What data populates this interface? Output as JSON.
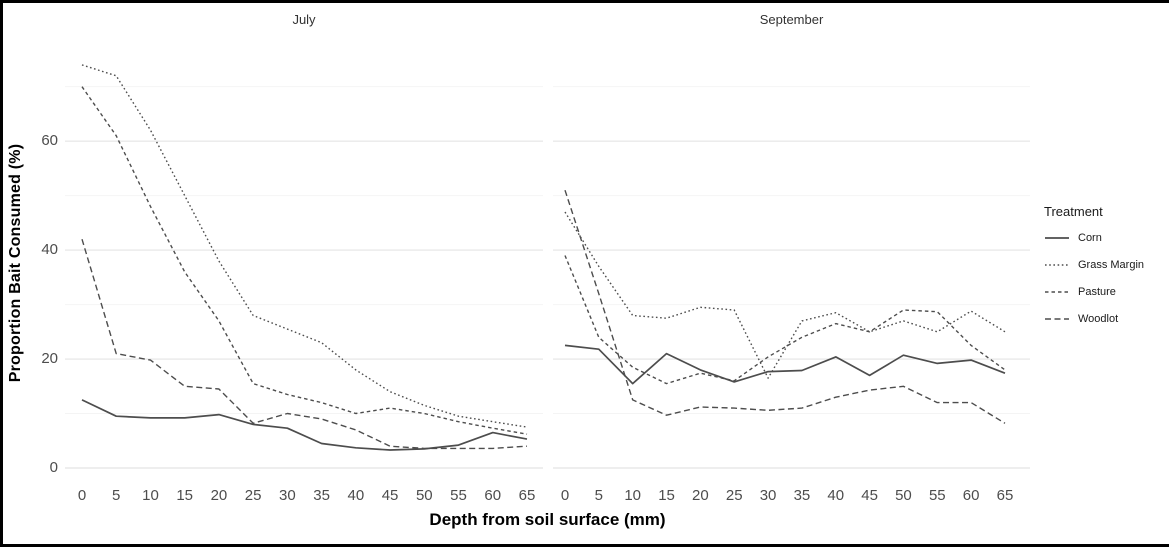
{
  "window": {
    "background": "#ffffff",
    "frame_color": "#000000"
  },
  "chart_data": {
    "type": "line",
    "title": "",
    "xlabel": "Depth from soil surface (mm)",
    "ylabel": "Proportion Bait Consumed (%)",
    "legend_title": "Treatment",
    "legend_position": "right",
    "grid": "horizontal-only",
    "panel_background": "#ffffff",
    "major_grid_color": "#e9e9e9",
    "minor_grid_color": "#f4f4f4",
    "line_color": "#4d4d4d",
    "x": [
      0,
      5,
      10,
      15,
      20,
      25,
      30,
      35,
      40,
      45,
      50,
      55,
      60,
      65
    ],
    "y_ticks": [
      0,
      20,
      40,
      60
    ],
    "y_minor_gridlines": [
      10,
      30,
      50,
      70
    ],
    "ylim": [
      0,
      78
    ],
    "facets": [
      {
        "label": "July",
        "series": [
          {
            "name": "Corn",
            "linetype": "solid",
            "values": [
              12.5,
              9.5,
              9.2,
              9.2,
              9.8,
              8.0,
              7.3,
              4.5,
              3.7,
              3.3,
              3.5,
              4.2,
              6.5,
              5.3
            ]
          },
          {
            "name": "Grass Margin",
            "linetype": "dotted",
            "values": [
              74,
              72,
              62,
              50,
              38,
              28,
              25.5,
              23,
              18,
              14,
              11.5,
              9.5,
              8.5,
              7.5
            ]
          },
          {
            "name": "Pasture",
            "linetype": "dashed",
            "values": [
              70,
              61,
              48,
              36,
              27,
              15.5,
              13.5,
              12,
              10,
              11,
              10,
              8.5,
              7.3,
              6.2
            ]
          },
          {
            "name": "Woodlot",
            "linetype": "longdash",
            "values": [
              42,
              21,
              19.8,
              15,
              14.5,
              8.2,
              10,
              9,
              7,
              4,
              3.6,
              3.6,
              3.6,
              4
            ]
          }
        ]
      },
      {
        "label": "September",
        "series": [
          {
            "name": "Corn",
            "linetype": "solid",
            "values": [
              22.5,
              21.8,
              15.5,
              21,
              18,
              15.8,
              17.7,
              17.9,
              20.4,
              17,
              20.7,
              19.2,
              19.8,
              17.4
            ]
          },
          {
            "name": "Grass Margin",
            "linetype": "dotted",
            "values": [
              47,
              37,
              28,
              27.5,
              29.5,
              29,
              16.5,
              27,
              28.5,
              25,
              27,
              25,
              28.8,
              25
            ]
          },
          {
            "name": "Pasture",
            "linetype": "dashed",
            "values": [
              39,
              24,
              18.5,
              15.5,
              17.4,
              16,
              20.4,
              24,
              26.5,
              25,
              29,
              28.7,
              22.5,
              18
            ]
          },
          {
            "name": "Woodlot",
            "linetype": "longdash",
            "values": [
              51,
              32,
              12.5,
              9.7,
              11.2,
              11,
              10.6,
              11,
              13,
              14.3,
              15,
              12,
              12,
              8.2
            ]
          }
        ]
      }
    ]
  }
}
